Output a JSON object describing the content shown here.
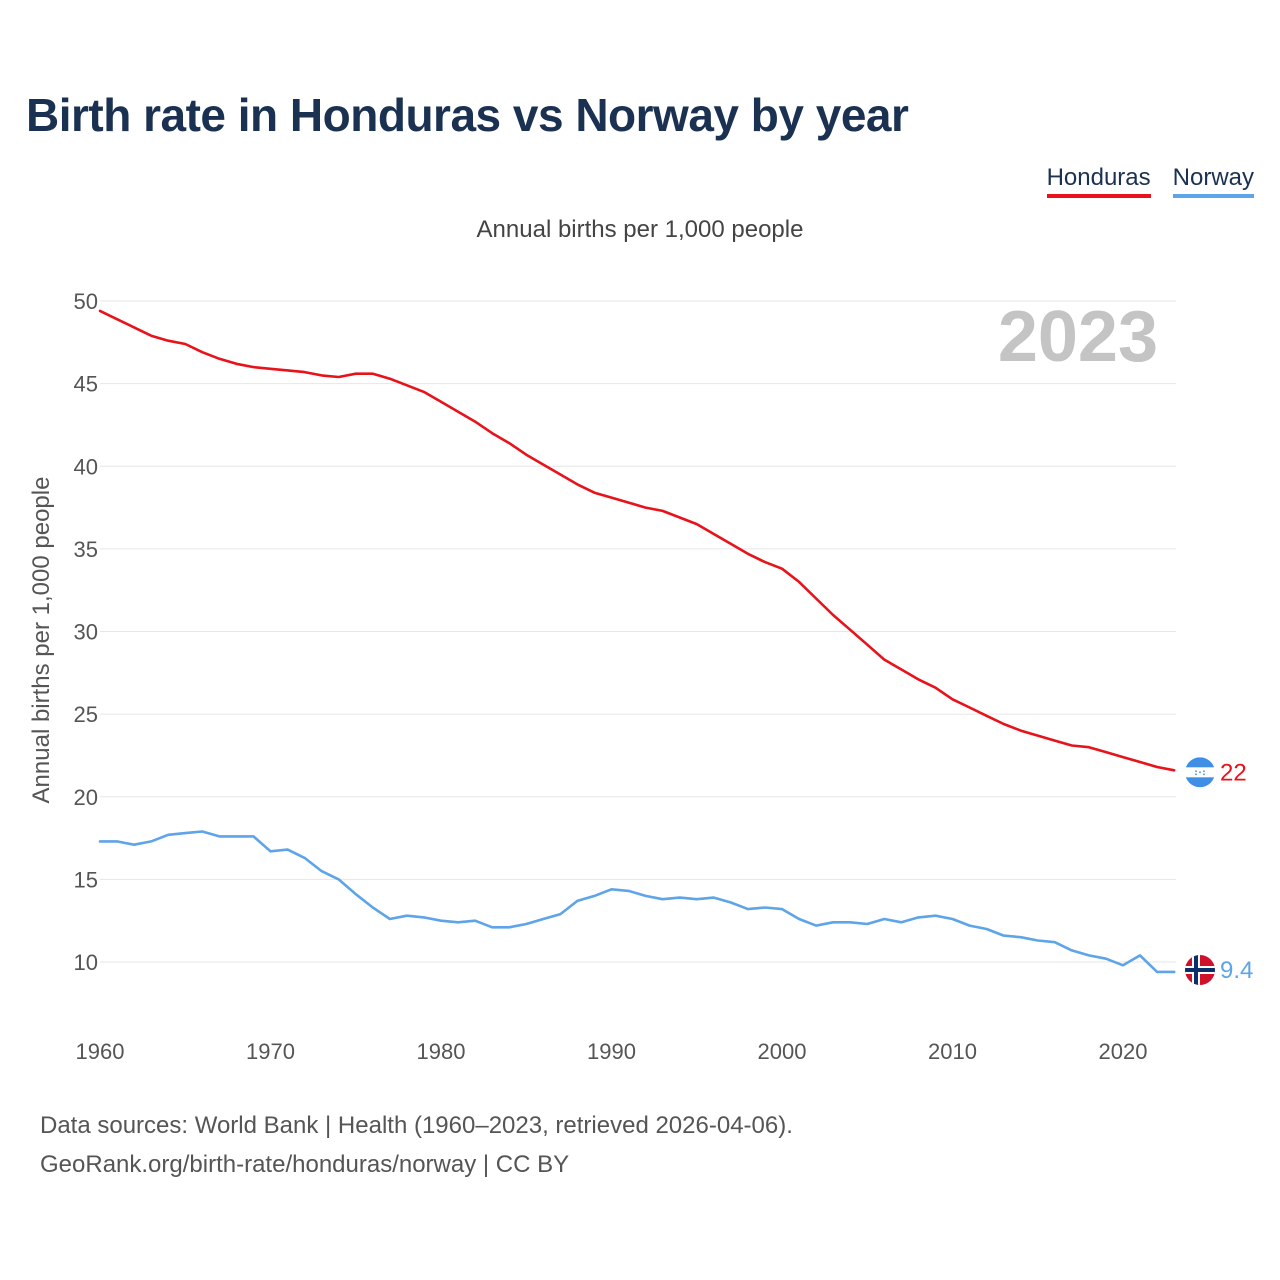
{
  "title": "Birth rate in Honduras vs Norway by year",
  "legend": {
    "honduras": "Honduras",
    "norway": "Norway"
  },
  "subtitle": "Annual births per 1,000 people",
  "year_overlay": "2023",
  "source": {
    "line1": "Data sources: World Bank | Health (1960–2023, retrieved 2026-04-06).",
    "line2": "GeoRank.org/birth-rate/honduras/norway | CC BY"
  },
  "colors": {
    "honduras": "#e8131a",
    "norway": "#5ea4e8",
    "grid": "#e6e6e6"
  },
  "chart_data": {
    "type": "line",
    "title": "Birth rate in Honduras vs Norway by year",
    "xlabel": "",
    "ylabel": "Annual births per 1,000 people",
    "xlim": [
      1960,
      2023
    ],
    "ylim": [
      7,
      50
    ],
    "y_ticks": [
      10,
      15,
      20,
      25,
      30,
      35,
      40,
      45,
      50
    ],
    "x_ticks": [
      1960,
      1970,
      1980,
      1990,
      2000,
      2010,
      2020
    ],
    "x": [
      1960,
      1961,
      1962,
      1963,
      1964,
      1965,
      1966,
      1967,
      1968,
      1969,
      1970,
      1971,
      1972,
      1973,
      1974,
      1975,
      1976,
      1977,
      1978,
      1979,
      1980,
      1981,
      1982,
      1983,
      1984,
      1985,
      1986,
      1987,
      1988,
      1989,
      1990,
      1991,
      1992,
      1993,
      1994,
      1995,
      1996,
      1997,
      1998,
      1999,
      2000,
      2001,
      2002,
      2003,
      2004,
      2005,
      2006,
      2007,
      2008,
      2009,
      2010,
      2011,
      2012,
      2013,
      2014,
      2015,
      2016,
      2017,
      2018,
      2019,
      2020,
      2021,
      2022,
      2023
    ],
    "series": [
      {
        "name": "Honduras",
        "color": "#e8131a",
        "end_label": "22",
        "values": [
          49.4,
          48.9,
          48.4,
          47.9,
          47.6,
          47.4,
          46.9,
          46.5,
          46.2,
          46.0,
          45.9,
          45.8,
          45.7,
          45.5,
          45.4,
          45.6,
          45.6,
          45.3,
          44.9,
          44.5,
          43.9,
          43.3,
          42.7,
          42.0,
          41.4,
          40.7,
          40.1,
          39.5,
          38.9,
          38.4,
          38.1,
          37.8,
          37.5,
          37.3,
          36.9,
          36.5,
          35.9,
          35.3,
          34.7,
          34.2,
          33.8,
          33.0,
          32.0,
          31.0,
          30.1,
          29.2,
          28.3,
          27.7,
          27.1,
          26.6,
          25.9,
          25.4,
          24.9,
          24.4,
          24.0,
          23.7,
          23.4,
          23.1,
          23.0,
          22.7,
          22.4,
          22.1,
          21.8,
          21.6
        ]
      },
      {
        "name": "Norway",
        "color": "#5ea4e8",
        "end_label": "9.4",
        "values": [
          17.3,
          17.3,
          17.1,
          17.3,
          17.7,
          17.8,
          17.9,
          17.6,
          17.6,
          17.6,
          16.7,
          16.8,
          16.3,
          15.5,
          15.0,
          14.1,
          13.3,
          12.6,
          12.8,
          12.7,
          12.5,
          12.4,
          12.5,
          12.1,
          12.1,
          12.3,
          12.6,
          12.9,
          13.7,
          14.0,
          14.4,
          14.3,
          14.0,
          13.8,
          13.9,
          13.8,
          13.9,
          13.6,
          13.2,
          13.3,
          13.2,
          12.6,
          12.2,
          12.4,
          12.4,
          12.3,
          12.6,
          12.4,
          12.7,
          12.8,
          12.6,
          12.2,
          12.0,
          11.6,
          11.5,
          11.3,
          11.2,
          10.7,
          10.4,
          10.2,
          9.8,
          10.4,
          9.4,
          9.4
        ]
      }
    ]
  }
}
